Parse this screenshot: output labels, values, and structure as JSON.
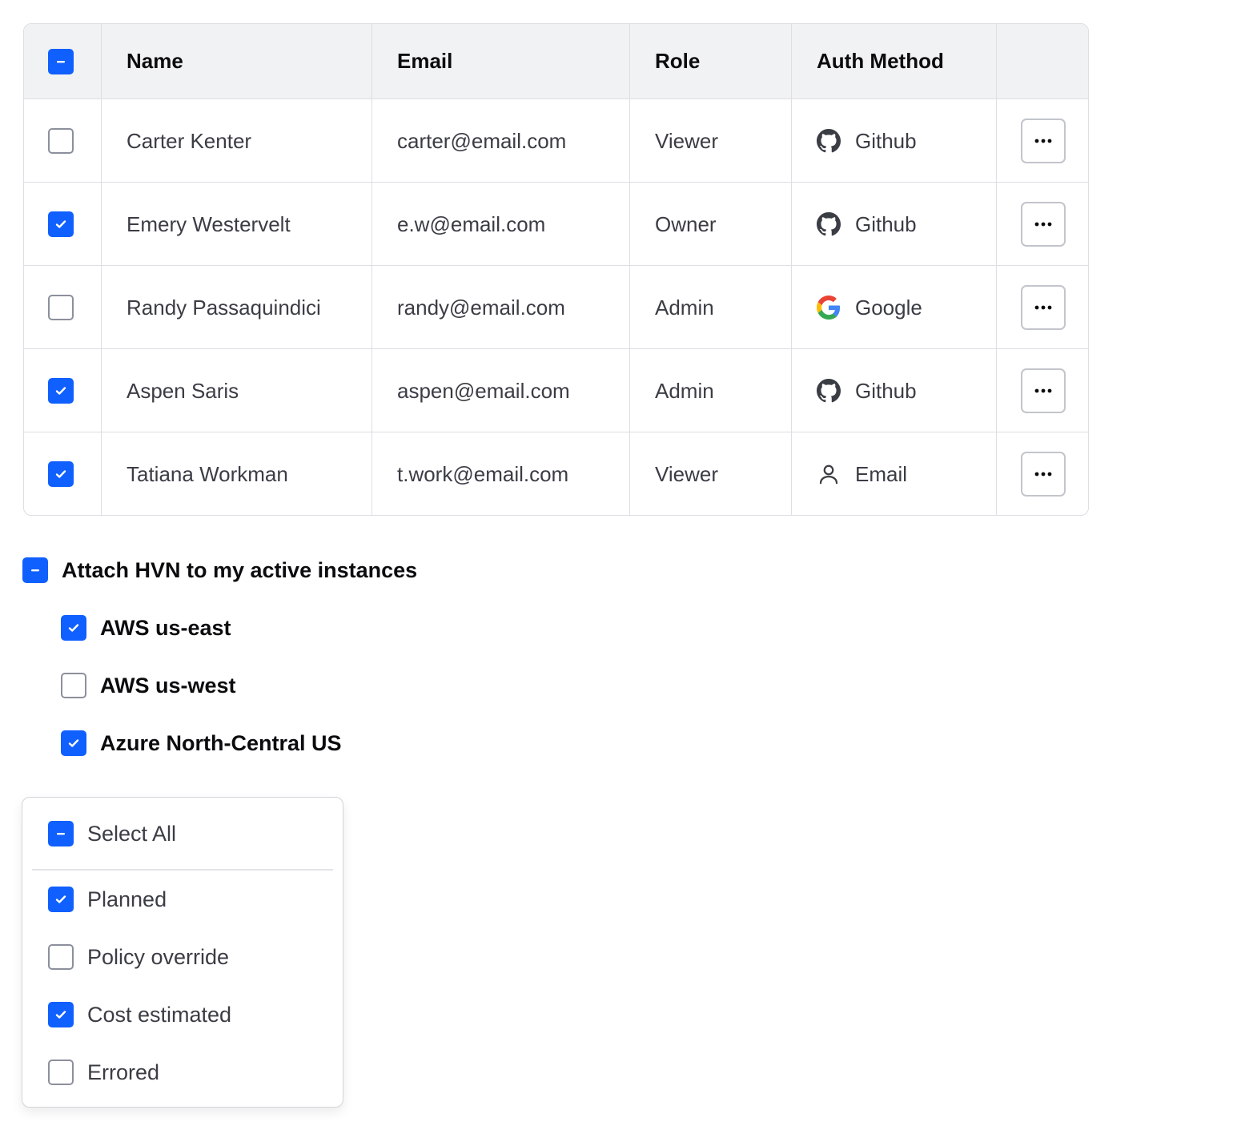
{
  "table": {
    "headers": [
      "Name",
      "Email",
      "Role",
      "Auth Method"
    ],
    "select_all_state": "indeterminate",
    "rows": [
      {
        "checked": false,
        "name": "Carter Kenter",
        "email": "carter@email.com",
        "role": "Viewer",
        "auth": "Github",
        "auth_icon": "github-icon"
      },
      {
        "checked": true,
        "name": "Emery Westervelt",
        "email": "e.w@email.com",
        "role": "Owner",
        "auth": "Github",
        "auth_icon": "github-icon"
      },
      {
        "checked": false,
        "name": "Randy Passaquindici",
        "email": "randy@email.com",
        "role": "Admin",
        "auth": "Google",
        "auth_icon": "google-icon"
      },
      {
        "checked": true,
        "name": "Aspen Saris",
        "email": "aspen@email.com",
        "role": "Admin",
        "auth": "Github",
        "auth_icon": "github-icon"
      },
      {
        "checked": true,
        "name": "Tatiana Workman",
        "email": "t.work@email.com",
        "role": "Viewer",
        "auth": "Email",
        "auth_icon": "user-icon"
      }
    ]
  },
  "group": {
    "parent_label": "Attach HVN to my active instances",
    "parent_state": "indeterminate",
    "children": [
      {
        "label": "AWS us-east",
        "checked": true
      },
      {
        "label": "AWS us-west",
        "checked": false
      },
      {
        "label": "Azure North-Central US",
        "checked": true
      }
    ]
  },
  "dropdown": {
    "select_all_label": "Select All",
    "select_all_state": "indeterminate",
    "items": [
      {
        "label": "Planned",
        "checked": true
      },
      {
        "label": "Policy override",
        "checked": false
      },
      {
        "label": "Cost estimated",
        "checked": true
      },
      {
        "label": "Errored",
        "checked": false
      }
    ]
  },
  "colors": {
    "accent": "#1060ff",
    "border": "#dedee3",
    "header_bg": "#f1f2f4"
  }
}
